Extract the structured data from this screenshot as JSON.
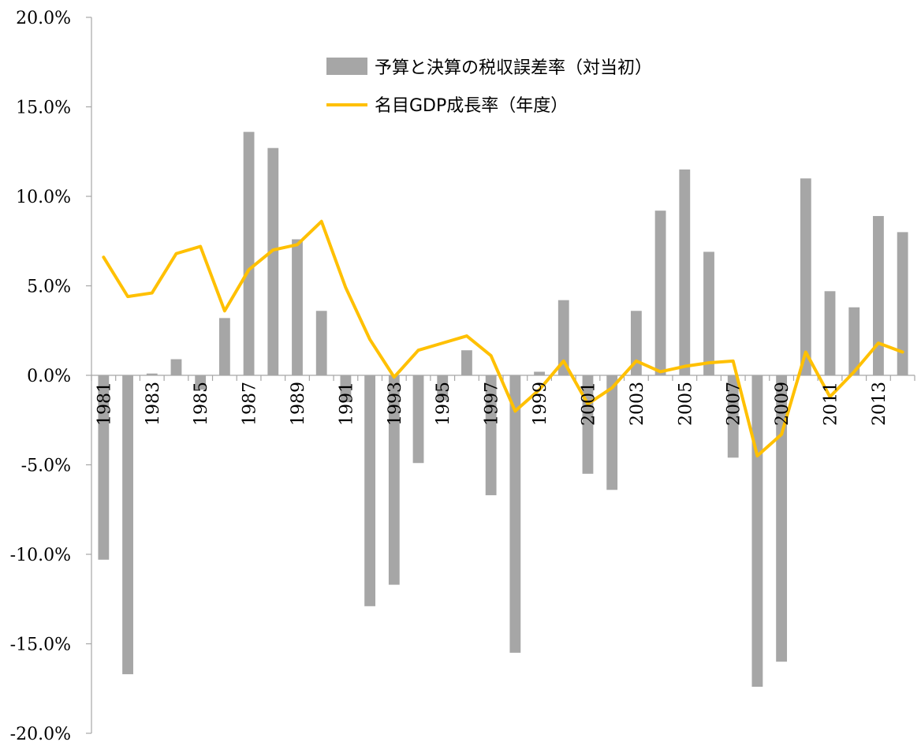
{
  "chart_data": {
    "type": "bar",
    "categories": [
      "1981",
      "1982",
      "1983",
      "1984",
      "1985",
      "1986",
      "1987",
      "1988",
      "1989",
      "1990",
      "1991",
      "1992",
      "1993",
      "1994",
      "1995",
      "1996",
      "1997",
      "1998",
      "1999",
      "2000",
      "2001",
      "2002",
      "2003",
      "2004",
      "2005",
      "2006",
      "2007",
      "2008",
      "2009",
      "2010",
      "2011",
      "2012",
      "2013",
      "2014"
    ],
    "x_tick_labels": [
      "1981",
      "1983",
      "1985",
      "1987",
      "1989",
      "1991",
      "1993",
      "1995",
      "1997",
      "1999",
      "2001",
      "2003",
      "2005",
      "2007",
      "2009",
      "2011",
      "2013"
    ],
    "y_tick_labels": [
      "20.0%",
      "15.0%",
      "10.0%",
      "5.0%",
      "0.0%",
      "-5.0%",
      "-10.0%",
      "-15.0%",
      "-20.0%"
    ],
    "ylim": [
      -20,
      20
    ],
    "yticks": [
      20,
      15,
      10,
      5,
      0,
      -5,
      -10,
      -15,
      -20
    ],
    "grid": false,
    "legend_position": "top-center",
    "series": [
      {
        "name": "予算と決算の税収誤差率（対当初）",
        "type": "bar",
        "color": "#a6a6a6",
        "values": [
          -10.3,
          -16.7,
          0.1,
          0.9,
          -0.8,
          3.2,
          13.6,
          12.7,
          7.6,
          3.6,
          -1.5,
          -12.9,
          -11.7,
          -4.9,
          -1.4,
          1.4,
          -6.7,
          -15.5,
          0.2,
          4.2,
          -5.5,
          -6.4,
          3.6,
          9.2,
          11.5,
          6.9,
          -4.6,
          -17.4,
          -16.0,
          11.0,
          4.7,
          3.8,
          8.9,
          8.0
        ]
      },
      {
        "name": "名目GDP成長率（年度）",
        "type": "line",
        "color": "#ffc000",
        "values": [
          6.6,
          4.4,
          4.6,
          6.8,
          7.2,
          3.6,
          5.9,
          7.0,
          7.3,
          8.6,
          4.9,
          2.0,
          -0.1,
          1.4,
          1.8,
          2.2,
          1.1,
          -2.0,
          -0.8,
          0.8,
          -1.6,
          -0.7,
          0.8,
          0.2,
          0.5,
          0.7,
          0.8,
          -4.5,
          -3.3,
          1.3,
          -1.2,
          0.2,
          1.8,
          1.3
        ]
      }
    ]
  }
}
